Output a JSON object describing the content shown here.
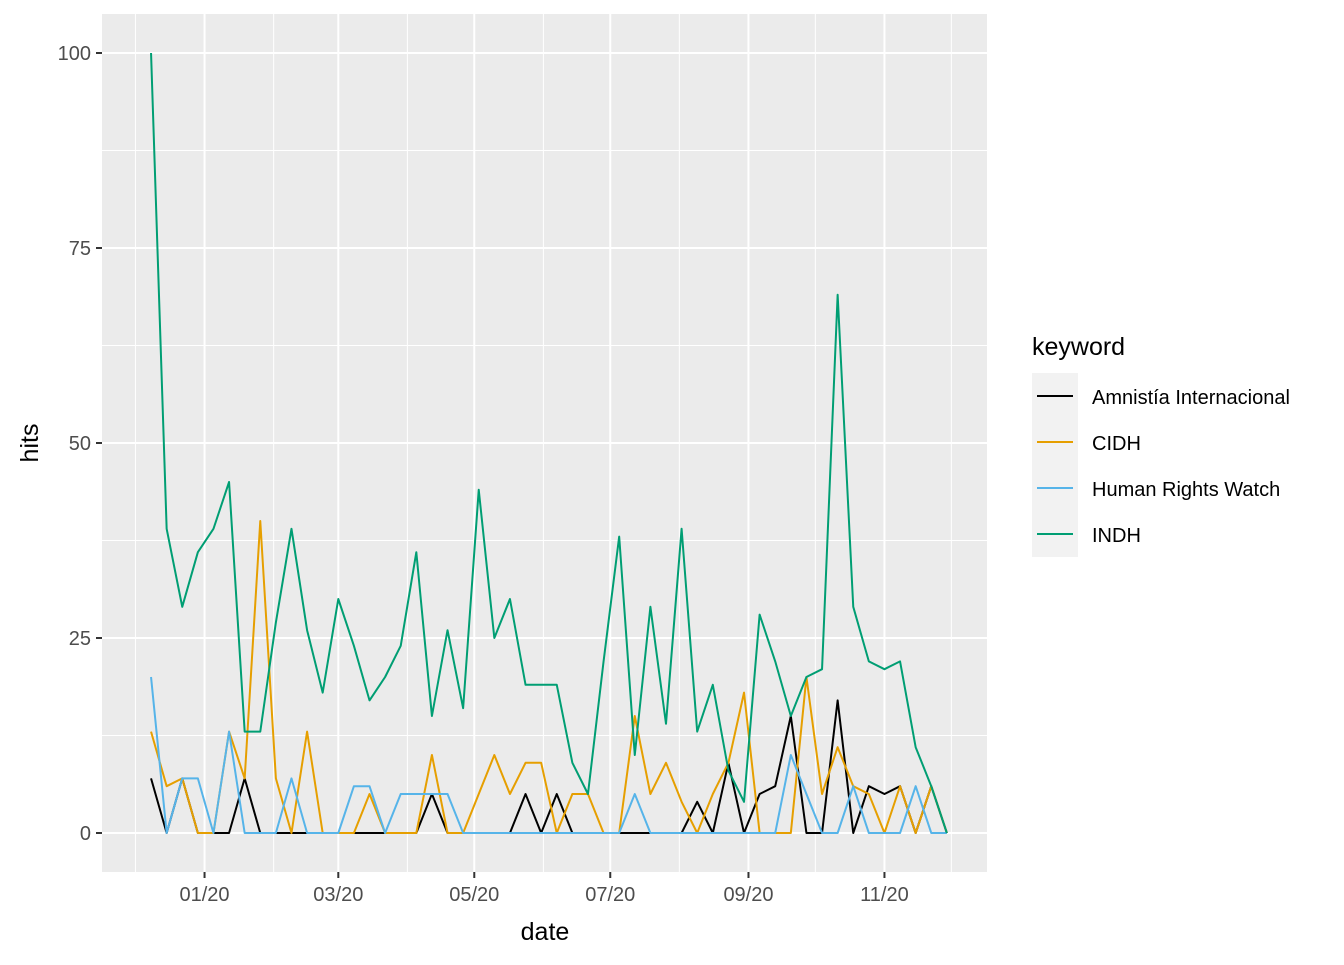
{
  "chart_data": {
    "type": "line",
    "xlabel": "date",
    "ylabel": "hits",
    "ylim": [
      -5,
      105
    ],
    "y_ticks": [
      0,
      25,
      50,
      75,
      100
    ],
    "x_ticks": [
      {
        "date": "2020-01-01",
        "label": "01/20"
      },
      {
        "date": "2020-03-01",
        "label": "03/20"
      },
      {
        "date": "2020-05-01",
        "label": "05/20"
      },
      {
        "date": "2020-07-01",
        "label": "07/20"
      },
      {
        "date": "2020-09-01",
        "label": "09/20"
      },
      {
        "date": "2020-11-01",
        "label": "11/20"
      }
    ],
    "x_minor_ticks": [
      "2019-12-01",
      "2020-02-01",
      "2020-04-01",
      "2020-06-01",
      "2020-08-01",
      "2020-10-01",
      "2020-12-01"
    ],
    "xlim": [
      "2019-11-16",
      "2020-12-17"
    ],
    "x": [
      "2019-12-08",
      "2019-12-15",
      "2019-12-22",
      "2019-12-29",
      "2020-01-05",
      "2020-01-12",
      "2020-01-19",
      "2020-01-26",
      "2020-02-02",
      "2020-02-09",
      "2020-02-16",
      "2020-02-23",
      "2020-03-01",
      "2020-03-08",
      "2020-03-15",
      "2020-03-22",
      "2020-03-29",
      "2020-04-05",
      "2020-04-12",
      "2020-04-19",
      "2020-04-26",
      "2020-05-03",
      "2020-05-10",
      "2020-05-17",
      "2020-05-24",
      "2020-05-31",
      "2020-06-07",
      "2020-06-14",
      "2020-06-21",
      "2020-06-28",
      "2020-07-05",
      "2020-07-12",
      "2020-07-19",
      "2020-07-26",
      "2020-08-02",
      "2020-08-09",
      "2020-08-16",
      "2020-08-23",
      "2020-08-30",
      "2020-09-06",
      "2020-09-13",
      "2020-09-20",
      "2020-09-27",
      "2020-10-04",
      "2020-10-11",
      "2020-10-18",
      "2020-10-25",
      "2020-11-01",
      "2020-11-08",
      "2020-11-15",
      "2020-11-22",
      "2020-11-29"
    ],
    "series": [
      {
        "name": "Amnistía Internacional",
        "color": "#000000",
        "values": [
          7,
          0,
          7,
          0,
          0,
          0,
          7,
          0,
          0,
          0,
          0,
          0,
          0,
          0,
          0,
          0,
          0,
          0,
          5,
          0,
          0,
          0,
          0,
          0,
          5,
          0,
          5,
          0,
          0,
          0,
          0,
          0,
          0,
          0,
          0,
          4,
          0,
          9,
          0,
          5,
          6,
          15,
          0,
          0,
          17,
          0,
          6,
          5,
          6,
          0,
          6,
          0
        ]
      },
      {
        "name": "CIDH",
        "color": "#E69F00",
        "values": [
          13,
          6,
          7,
          0,
          0,
          13,
          7,
          40,
          7,
          0,
          13,
          0,
          0,
          0,
          5,
          0,
          0,
          0,
          10,
          0,
          0,
          5,
          10,
          5,
          9,
          9,
          0,
          5,
          5,
          0,
          0,
          15,
          5,
          9,
          4,
          0,
          5,
          9,
          18,
          0,
          0,
          0,
          20,
          5,
          11,
          6,
          5,
          0,
          6,
          0,
          6,
          0
        ]
      },
      {
        "name": "Human Rights Watch",
        "color": "#56B4E9",
        "values": [
          20,
          0,
          7,
          7,
          0,
          13,
          0,
          0,
          0,
          7,
          0,
          0,
          0,
          6,
          6,
          0,
          5,
          5,
          5,
          5,
          0,
          0,
          0,
          0,
          0,
          0,
          0,
          0,
          0,
          0,
          0,
          5,
          0,
          0,
          0,
          0,
          0,
          0,
          0,
          0,
          0,
          10,
          5,
          0,
          0,
          6,
          0,
          0,
          0,
          6,
          0,
          0
        ]
      },
      {
        "name": "INDH",
        "color": "#009E73",
        "values": [
          100,
          39,
          29,
          36,
          39,
          45,
          13,
          13,
          27,
          39,
          26,
          18,
          30,
          24,
          17,
          20,
          24,
          36,
          15,
          26,
          16,
          44,
          25,
          30,
          19,
          19,
          19,
          9,
          5,
          22,
          38,
          10,
          29,
          14,
          39,
          13,
          19,
          8,
          4,
          28,
          22,
          15,
          20,
          21,
          69,
          29,
          22,
          21,
          22,
          11,
          6,
          0
        ]
      }
    ],
    "legend": {
      "title": "keyword",
      "position": "right"
    },
    "grid": true
  }
}
